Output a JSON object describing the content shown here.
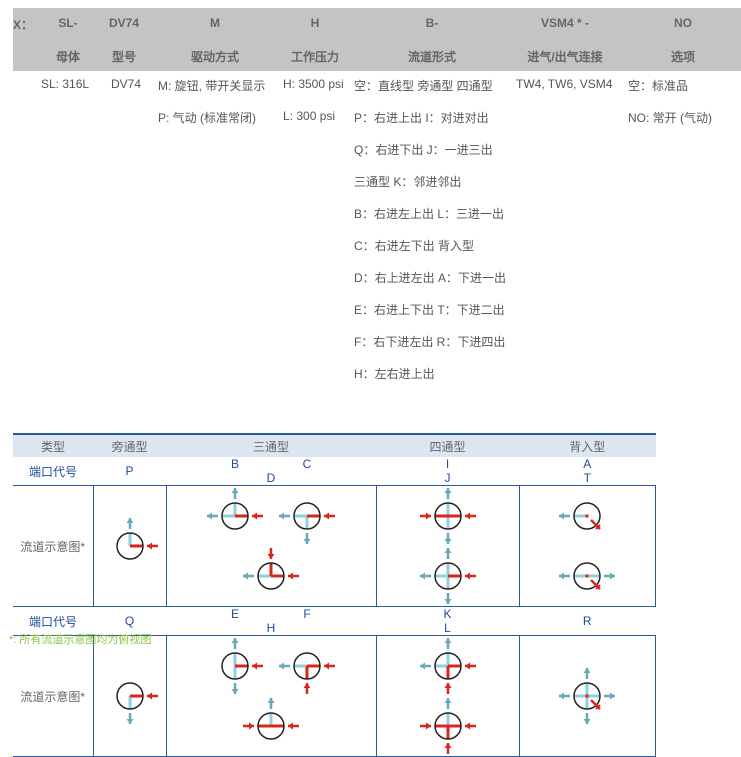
{
  "header": {
    "codes": [
      "X：",
      "SL-",
      "DV74",
      "M",
      "H",
      "B-",
      "VSM4 * -",
      "NO"
    ],
    "labels": [
      "母体",
      "型号",
      "驱动方式",
      "工作压力",
      "流道形式",
      "进气/出气连接",
      "选项"
    ]
  },
  "rows": {
    "body": [
      "SL: 316L"
    ],
    "model": [
      "DV74"
    ],
    "actuator": [
      "M: 旋钮, 带开关显示",
      "P: 气动 (标准常闭)"
    ],
    "pressure": [
      "H: 3500 psi",
      "L: 300 psi"
    ],
    "flow": [
      "空：直线型  旁通型 四通型",
      "P：右进上出 I：对进对出",
      "Q：右进下出 J：一进三出",
      "三通型 K：邻进邻出",
      "B：右进左上出 L：三进一出",
      "C：右进左下出 背入型",
      "D：右上进左出 A：下进一出",
      "E：右进上下出 T：下进二出",
      "F：右下进左出 R：下进四出",
      "H：左右进上出"
    ],
    "connection": [
      "TW4, TW6,  VSM4"
    ],
    "options": [
      "空：标准品",
      "NO: 常开 (气动)"
    ]
  },
  "table": {
    "types": [
      "类型",
      "旁通型",
      "三通型",
      "四通型",
      "背入型"
    ],
    "port_label": "端口代号",
    "diagram_label": "流道示意图*",
    "row1": [
      [
        "P"
      ],
      [
        "B",
        "C",
        "D"
      ],
      [
        "I",
        "J"
      ],
      [
        "A",
        "T"
      ]
    ],
    "row2": [
      [
        "Q"
      ],
      [
        "E",
        "F",
        "H"
      ],
      [
        "K",
        "L"
      ],
      [
        "R"
      ]
    ],
    "colors": {
      "inlet": "#d9261c",
      "outlet": "#8ecfe0",
      "arrow_out": "#6aa8b8",
      "border": "#2a5aa0"
    },
    "diagrams": {
      "P": {
        "in": [
          "right"
        ],
        "out": [
          "up"
        ]
      },
      "Q": {
        "in": [
          "right"
        ],
        "out": [
          "down"
        ]
      },
      "B": {
        "in": [
          "right"
        ],
        "out": [
          "left",
          "up"
        ]
      },
      "C": {
        "in": [
          "right"
        ],
        "out": [
          "left",
          "down"
        ]
      },
      "D": {
        "in": [
          "right",
          "up"
        ],
        "out": [
          "left"
        ]
      },
      "E": {
        "in": [
          "right"
        ],
        "out": [
          "up",
          "down"
        ]
      },
      "F": {
        "in": [
          "right",
          "down"
        ],
        "out": [
          "left"
        ]
      },
      "H": {
        "in": [
          "left",
          "right"
        ],
        "out": [
          "up"
        ]
      },
      "I": {
        "in": [
          "left",
          "right"
        ],
        "out": [
          "up",
          "down"
        ]
      },
      "J": {
        "in": [
          "right"
        ],
        "out": [
          "left",
          "up",
          "down"
        ]
      },
      "K": {
        "in": [
          "right",
          "down"
        ],
        "out": [
          "left",
          "up"
        ]
      },
      "L": {
        "in": [
          "left",
          "right",
          "down"
        ],
        "out": [
          "up"
        ]
      },
      "A": {
        "in": [
          "back"
        ],
        "out": [
          "left"
        ]
      },
      "T": {
        "in": [
          "back"
        ],
        "out": [
          "left",
          "right"
        ]
      },
      "R": {
        "in": [
          "back"
        ],
        "out": [
          "left",
          "right",
          "up",
          "down"
        ]
      }
    }
  },
  "note": "*: 所有流道示意图均为俯视图"
}
